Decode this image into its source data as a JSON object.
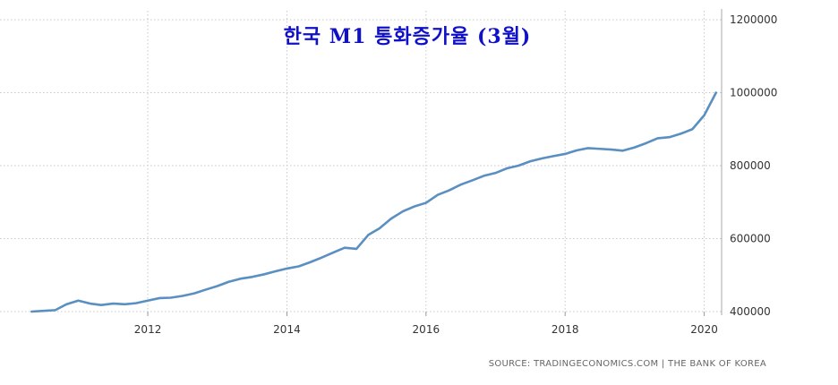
{
  "chart_data": {
    "type": "line",
    "title": "한국 M1 통화증가율 (3월)",
    "source": "SOURCE: TRADINGECONOMICS.COM | THE BANK OF KOREA",
    "xlabel": "",
    "ylabel": "",
    "xlim": [
      2010.3,
      2020.25
    ],
    "ylim": [
      400000,
      1200000
    ],
    "x_ticks": [
      2012,
      2014,
      2016,
      2018,
      2020
    ],
    "y_ticks": [
      400000,
      600000,
      800000,
      1000000,
      1200000
    ],
    "grid": true,
    "line_color": "#5a8fc2",
    "title_color": "#1010c8",
    "series": [
      {
        "x": [
          2010.33,
          2010.5,
          2010.67,
          2010.83,
          2011.0,
          2011.17,
          2011.33,
          2011.5,
          2011.67,
          2011.83,
          2012.0,
          2012.17,
          2012.33,
          2012.5,
          2012.67,
          2012.83,
          2013.0,
          2013.17,
          2013.33,
          2013.5,
          2013.67,
          2013.83,
          2014.0,
          2014.17,
          2014.33,
          2014.5,
          2014.67,
          2014.83,
          2015.0,
          2015.17,
          2015.33,
          2015.5,
          2015.67,
          2015.83,
          2016.0,
          2016.17,
          2016.33,
          2016.5,
          2016.67,
          2016.83,
          2017.0,
          2017.17,
          2017.33,
          2017.5,
          2017.67,
          2017.83,
          2018.0,
          2018.17,
          2018.33,
          2018.5,
          2018.67,
          2018.83,
          2019.0,
          2019.17,
          2019.33,
          2019.5,
          2019.67,
          2019.83,
          2020.0,
          2020.17
        ],
        "values": [
          400000,
          402000,
          404000,
          420000,
          430000,
          422000,
          418000,
          422000,
          420000,
          423000,
          430000,
          437000,
          438000,
          443000,
          450000,
          460000,
          470000,
          482000,
          490000,
          495000,
          502000,
          510000,
          518000,
          524000,
          535000,
          548000,
          562000,
          575000,
          572000,
          610000,
          628000,
          655000,
          675000,
          688000,
          698000,
          720000,
          732000,
          748000,
          760000,
          772000,
          780000,
          793000,
          800000,
          812000,
          820000,
          826000,
          832000,
          842000,
          848000,
          846000,
          844000,
          841000,
          850000,
          862000,
          875000,
          878000,
          888000,
          900000,
          938000,
          1000000
        ]
      }
    ]
  }
}
